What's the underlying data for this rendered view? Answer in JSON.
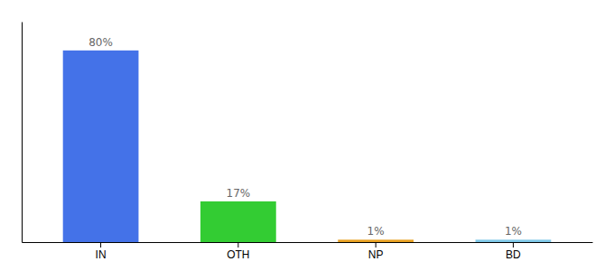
{
  "chart_data": {
    "type": "bar",
    "categories": [
      "IN",
      "OTH",
      "NP",
      "BD"
    ],
    "values": [
      80,
      17,
      1,
      1
    ],
    "value_labels": [
      "80%",
      "17%",
      "1%",
      "1%"
    ],
    "colors": [
      "#4472e8",
      "#33cc33",
      "#e8a020",
      "#7ec8e8"
    ],
    "ylim": [
      0,
      92
    ],
    "data_labels": true,
    "tick_labels": "x"
  }
}
